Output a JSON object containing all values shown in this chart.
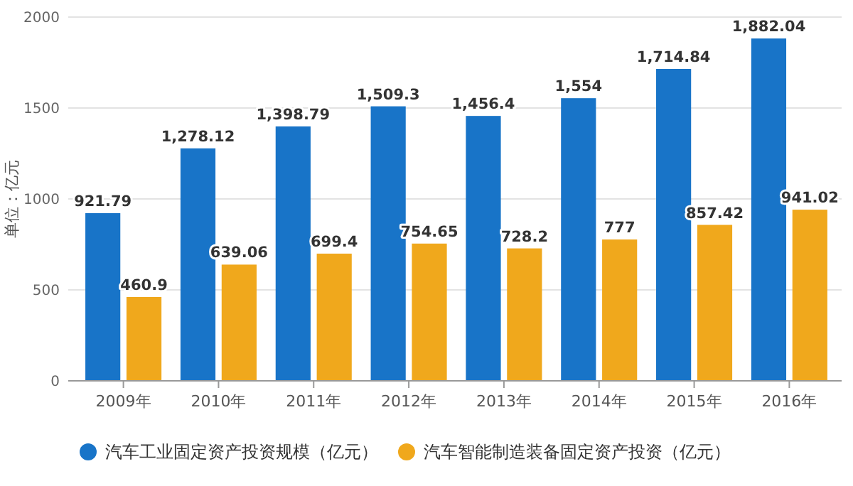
{
  "chart_data": {
    "type": "bar",
    "ylabel": "单位：亿元",
    "categories": [
      "2009年",
      "2010年",
      "2011年",
      "2012年",
      "2013年",
      "2014年",
      "2015年",
      "2016年"
    ],
    "series": [
      {
        "name": "汽车工业固定资产投资规模（亿元）",
        "color": "#1874c8",
        "values": [
          921.79,
          1278.12,
          1398.79,
          1509.3,
          1456.4,
          1554,
          1714.84,
          1882.04
        ],
        "value_labels": [
          "921.79",
          "1,278.12",
          "1,398.79",
          "1,509.3",
          "1,456.4",
          "1,554",
          "1,714.84",
          "1,882.04"
        ]
      },
      {
        "name": "汽车智能制造装备固定资产投资（亿元）",
        "color": "#f0a81c",
        "values": [
          460.9,
          639.06,
          699.4,
          754.65,
          728.2,
          777,
          857.42,
          941.02
        ],
        "value_labels": [
          "460.9",
          "639.06",
          "699.4",
          "754.65",
          "728.2",
          "777",
          "857.42",
          "941.02"
        ]
      }
    ],
    "ylim": [
      0,
      2000
    ],
    "yticks": [
      0,
      500,
      1000,
      1500,
      2000
    ],
    "grid": "y",
    "legend": "bottom"
  }
}
